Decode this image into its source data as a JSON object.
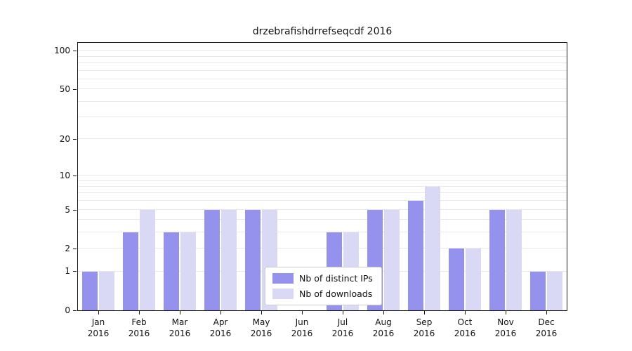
{
  "title": "drzebrafishdrrefseqcdf 2016",
  "legend": {
    "items": [
      {
        "label": "Nb of distinct IPs",
        "color": "#9492ec"
      },
      {
        "label": "Nb of downloads",
        "color": "#d9d9f6"
      }
    ]
  },
  "chart_data": {
    "type": "bar",
    "title": "drzebrafishdrrefseqcdf 2016",
    "categories": [
      "Jan 2016",
      "Feb 2016",
      "Mar 2016",
      "Apr 2016",
      "May 2016",
      "Jun 2016",
      "Jul 2016",
      "Aug 2016",
      "Sep 2016",
      "Oct 2016",
      "Nov 2016",
      "Dec 2016"
    ],
    "series": [
      {
        "name": "Nb of distinct IPs",
        "color": "#9492ec",
        "values": [
          1,
          3,
          3,
          5,
          5,
          0,
          3,
          5,
          6,
          2,
          5,
          1
        ]
      },
      {
        "name": "Nb of downloads",
        "color": "#d9d9f6",
        "values": [
          1,
          5,
          3,
          5,
          5,
          0,
          3,
          5,
          8,
          2,
          5,
          1
        ]
      }
    ],
    "yticks": [
      0,
      1,
      2,
      5,
      10,
      20,
      50,
      100
    ],
    "gridlines": [
      1,
      2,
      3,
      4,
      5,
      6,
      7,
      8,
      9,
      10,
      20,
      30,
      40,
      50,
      60,
      70,
      80,
      90,
      100
    ],
    "scale": "log(v+1)",
    "ylim": [
      0,
      115
    ],
    "xlabel": "",
    "ylabel": "",
    "legend_position": "lower center (inside plot)"
  }
}
